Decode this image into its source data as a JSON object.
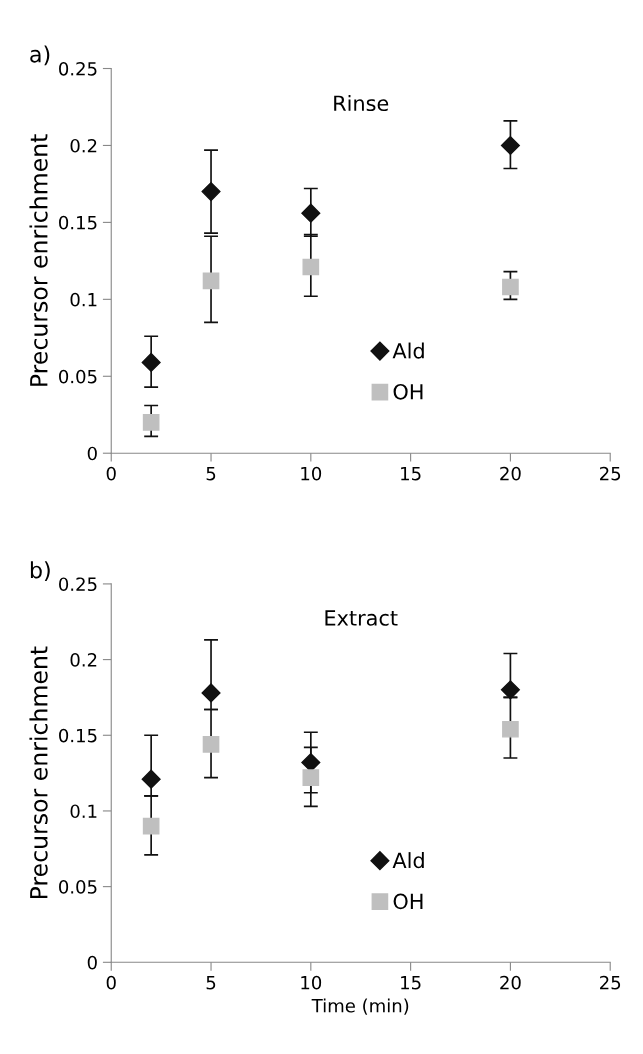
{
  "chart_data": [
    {
      "type": "scatter",
      "title": "Rinse",
      "ylabel": "Precursor enrichment",
      "annotations": [
        "a)"
      ],
      "xlim": [
        0,
        25
      ],
      "xticks": [
        0,
        5,
        10,
        15,
        20,
        25
      ],
      "ylim": [
        0,
        0.25
      ],
      "yticks": [
        0,
        0.05,
        0.1,
        0.15,
        0.2,
        0.25
      ],
      "grid": false,
      "legend": "bottom",
      "series": [
        {
          "name": "Ald",
          "color": "#111111",
          "marker": "diamond",
          "x": [
            2,
            5,
            10,
            20
          ],
          "values": [
            0.059,
            0.17,
            0.156,
            0.2
          ],
          "errors": [
            [
              0.043,
              0.076
            ],
            [
              0.143,
              0.197
            ],
            [
              0.141,
              0.172
            ],
            [
              0.185,
              0.216
            ]
          ]
        },
        {
          "name": "OH",
          "color": "#bfbfbf",
          "marker": "square",
          "x": [
            2,
            5,
            10,
            20
          ],
          "values": [
            0.02,
            0.112,
            0.121,
            0.108
          ],
          "errors": [
            [
              0.011,
              0.031
            ],
            [
              0.085,
              0.141
            ],
            [
              0.102,
              0.142
            ],
            [
              0.1,
              0.118
            ]
          ]
        }
      ]
    },
    {
      "type": "scatter",
      "title": "Extract",
      "ylabel": "Precursor enrichment",
      "xlabel": "Time (min)",
      "annotations": [
        "b)"
      ],
      "xlim": [
        0,
        25
      ],
      "xticks": [
        0,
        5,
        10,
        15,
        20,
        25
      ],
      "ylim": [
        0,
        0.25
      ],
      "yticks": [
        0,
        0.05,
        0.1,
        0.15,
        0.2,
        0.25
      ],
      "grid": false,
      "legend": "bottom",
      "series": [
        {
          "name": "Ald",
          "color": "#111111",
          "marker": "diamond",
          "x": [
            2,
            5,
            10,
            20
          ],
          "values": [
            0.121,
            0.178,
            0.132,
            0.18
          ],
          "errors": [
            [
              0.11,
              0.15
            ],
            [
              0.167,
              0.213
            ],
            [
              0.112,
              0.152
            ],
            [
              0.175,
              0.204
            ]
          ]
        },
        {
          "name": "OH",
          "color": "#bfbfbf",
          "marker": "square",
          "x": [
            2,
            5,
            10,
            20
          ],
          "values": [
            0.09,
            0.144,
            0.122,
            0.154
          ],
          "errors": [
            [
              0.071,
              0.11
            ],
            [
              0.122,
              0.167
            ],
            [
              0.103,
              0.142
            ],
            [
              0.135,
              0.175
            ]
          ]
        }
      ]
    }
  ]
}
